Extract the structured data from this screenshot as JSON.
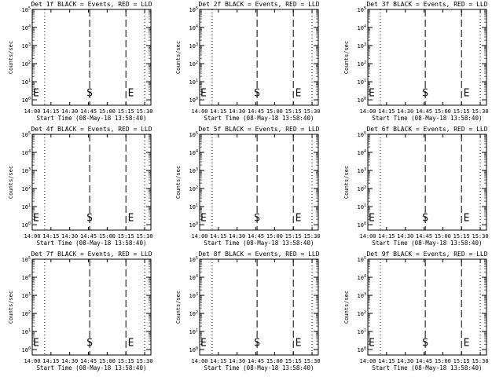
{
  "chart_data": [
    {
      "type": "line",
      "title": "Det 1f BLACK = Events, RED = LLD",
      "xlabel": "Start Time (08-May-18 13:58:40)",
      "ylabel": "Counts/sec",
      "xticks": [
        "14:00",
        "14:15",
        "14:30",
        "14:45",
        "15:00",
        "15:15",
        "15:30"
      ],
      "yticks": [
        "10^0",
        "10^1",
        "10^2",
        "10^3",
        "10^4",
        "10^5"
      ],
      "x_range_min": [
        0,
        95
      ],
      "y_range": [
        0.5,
        100000
      ],
      "y_scale": "log",
      "dotted_lines_min": [
        10,
        -2,
        90,
        103
      ],
      "dashed_lines_min": [
        46,
        75
      ],
      "markers": [
        "S",
        "E",
        "E"
      ],
      "marker_x_min": [
        46,
        79,
        -2
      ],
      "series": []
    },
    {
      "type": "line",
      "title": "Det 2f BLACK = Events, RED = LLD",
      "xlabel": "Start Time (08-May-18 13:58:40)",
      "ylabel": "Counts/sec",
      "xticks": [
        "14:00",
        "14:15",
        "14:30",
        "14:45",
        "15:00",
        "15:15",
        "15:30"
      ],
      "yticks": [
        "10^0",
        "10^1",
        "10^2",
        "10^3",
        "10^4",
        "10^5"
      ],
      "x_range_min": [
        0,
        95
      ],
      "y_range": [
        0.5,
        100000
      ],
      "y_scale": "log",
      "dotted_lines_min": [
        10,
        -2,
        90,
        103
      ],
      "dashed_lines_min": [
        46,
        75
      ],
      "markers": [
        "S",
        "E",
        "E"
      ],
      "marker_x_min": [
        46,
        79,
        -2
      ],
      "series": []
    },
    {
      "type": "line",
      "title": "Det 3f BLACK = Events, RED = LLD",
      "xlabel": "Start Time (08-May-18 13:58:40)",
      "ylabel": "Counts/sec",
      "xticks": [
        "14:00",
        "14:15",
        "14:30",
        "14:45",
        "15:00",
        "15:15",
        "15:30"
      ],
      "yticks": [
        "10^0",
        "10^1",
        "10^2",
        "10^3",
        "10^4",
        "10^5"
      ],
      "x_range_min": [
        0,
        95
      ],
      "y_range": [
        0.5,
        100000
      ],
      "y_scale": "log",
      "dotted_lines_min": [
        10,
        -2,
        90,
        103
      ],
      "dashed_lines_min": [
        46,
        75
      ],
      "markers": [
        "S",
        "E",
        "E"
      ],
      "marker_x_min": [
        46,
        79,
        -2
      ],
      "series": []
    },
    {
      "type": "line",
      "title": "Det 4f BLACK = Events, RED = LLD",
      "xlabel": "Start Time (08-May-18 13:58:40)",
      "ylabel": "Counts/sec",
      "xticks": [
        "14:00",
        "14:15",
        "14:30",
        "14:45",
        "15:00",
        "15:15",
        "15:30"
      ],
      "yticks": [
        "10^0",
        "10^1",
        "10^2",
        "10^3",
        "10^4",
        "10^5"
      ],
      "x_range_min": [
        0,
        95
      ],
      "y_range": [
        0.5,
        100000
      ],
      "y_scale": "log",
      "dotted_lines_min": [
        10,
        -2,
        90,
        103
      ],
      "dashed_lines_min": [
        46,
        75
      ],
      "markers": [
        "S",
        "E",
        "E"
      ],
      "marker_x_min": [
        46,
        79,
        -2
      ],
      "series": []
    },
    {
      "type": "line",
      "title": "Det 5f BLACK = Events, RED = LLD",
      "xlabel": "Start Time (08-May-18 13:58:40)",
      "ylabel": "Counts/sec",
      "xticks": [
        "14:00",
        "14:15",
        "14:30",
        "14:45",
        "15:00",
        "15:15",
        "15:30"
      ],
      "yticks": [
        "10^0",
        "10^1",
        "10^2",
        "10^3",
        "10^4",
        "10^5"
      ],
      "x_range_min": [
        0,
        95
      ],
      "y_range": [
        0.5,
        100000
      ],
      "y_scale": "log",
      "dotted_lines_min": [
        10,
        -2,
        90,
        103
      ],
      "dashed_lines_min": [
        46,
        75
      ],
      "markers": [
        "S",
        "E",
        "E"
      ],
      "marker_x_min": [
        46,
        79,
        -2
      ],
      "series": []
    },
    {
      "type": "line",
      "title": "Det 6f BLACK = Events, RED = LLD",
      "xlabel": "Start Time (08-May-18 13:58:40)",
      "ylabel": "Counts/sec",
      "xticks": [
        "14:00",
        "14:15",
        "14:30",
        "14:45",
        "15:00",
        "15:15",
        "15:30"
      ],
      "yticks": [
        "10^0",
        "10^1",
        "10^2",
        "10^3",
        "10^4",
        "10^5"
      ],
      "x_range_min": [
        0,
        95
      ],
      "y_range": [
        0.5,
        100000
      ],
      "y_scale": "log",
      "dotted_lines_min": [
        10,
        -2,
        90,
        103
      ],
      "dashed_lines_min": [
        46,
        75
      ],
      "markers": [
        "S",
        "E",
        "E"
      ],
      "marker_x_min": [
        46,
        79,
        -2
      ],
      "series": []
    },
    {
      "type": "line",
      "title": "Det 7f BLACK = Events, RED = LLD",
      "xlabel": "Start Time (08-May-18 13:58:40)",
      "ylabel": "Counts/sec",
      "xticks": [
        "14:00",
        "14:15",
        "14:30",
        "14:45",
        "15:00",
        "15:15",
        "15:30"
      ],
      "yticks": [
        "10^0",
        "10^1",
        "10^2",
        "10^3",
        "10^4",
        "10^5"
      ],
      "x_range_min": [
        0,
        95
      ],
      "y_range": [
        0.5,
        100000
      ],
      "y_scale": "log",
      "dotted_lines_min": [
        10,
        -2,
        90,
        103
      ],
      "dashed_lines_min": [
        46,
        75
      ],
      "markers": [
        "S",
        "E",
        "E"
      ],
      "marker_x_min": [
        46,
        79,
        -2
      ],
      "series": []
    },
    {
      "type": "line",
      "title": "Det 8f BLACK = Events, RED = LLD",
      "xlabel": "Start Time (08-May-18 13:58:40)",
      "ylabel": "Counts/sec",
      "xticks": [
        "14:00",
        "14:15",
        "14:30",
        "14:45",
        "15:00",
        "15:15",
        "15:30"
      ],
      "yticks": [
        "10^0",
        "10^1",
        "10^2",
        "10^3",
        "10^4",
        "10^5"
      ],
      "x_range_min": [
        0,
        95
      ],
      "y_range": [
        0.5,
        100000
      ],
      "y_scale": "log",
      "dotted_lines_min": [
        10,
        -2,
        90,
        103
      ],
      "dashed_lines_min": [
        46,
        75
      ],
      "markers": [
        "S",
        "E",
        "E"
      ],
      "marker_x_min": [
        46,
        79,
        -2
      ],
      "series": []
    },
    {
      "type": "line",
      "title": "Det 9f BLACK = Events, RED = LLD",
      "xlabel": "Start Time (08-May-18 13:58:40)",
      "ylabel": "Counts/sec",
      "xticks": [
        "14:00",
        "14:15",
        "14:30",
        "14:45",
        "15:00",
        "15:15",
        "15:30"
      ],
      "yticks": [
        "10^0",
        "10^1",
        "10^2",
        "10^3",
        "10^4",
        "10^5"
      ],
      "x_range_min": [
        0,
        95
      ],
      "y_range": [
        0.5,
        100000
      ],
      "y_scale": "log",
      "dotted_lines_min": [
        10,
        -2,
        90,
        103
      ],
      "dashed_lines_min": [
        46,
        75
      ],
      "markers": [
        "S",
        "E",
        "E"
      ],
      "marker_x_min": [
        46,
        79,
        -2
      ],
      "series": []
    }
  ]
}
